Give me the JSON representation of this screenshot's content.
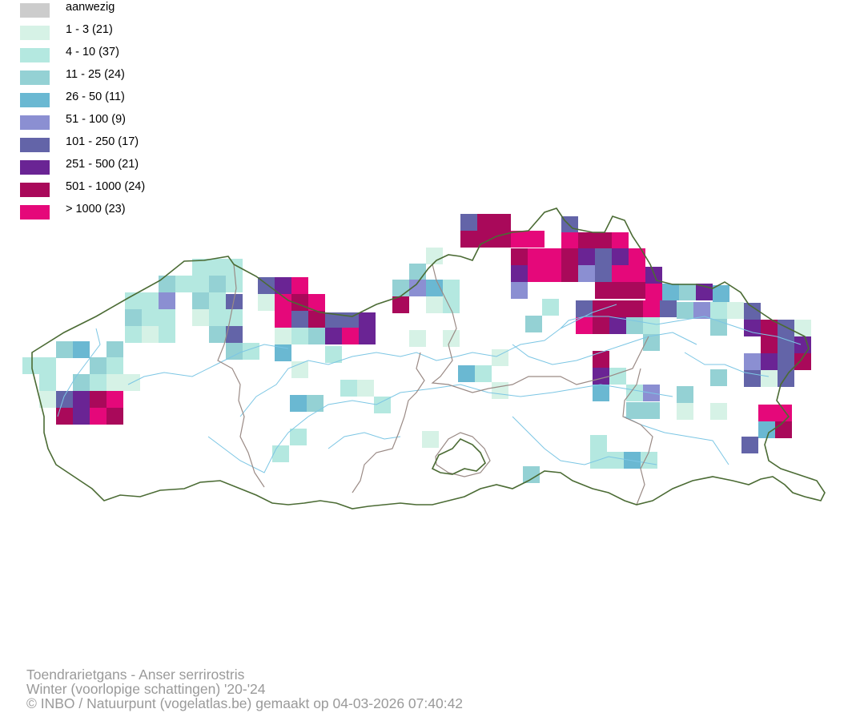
{
  "legend": [
    {
      "label": "aanwezig",
      "color": "#cccccc"
    },
    {
      "label": "1 - 3 (21)",
      "color": "#d6f2e6"
    },
    {
      "label": "4 - 10 (37)",
      "color": "#b4e8e0"
    },
    {
      "label": "11 - 25 (24)",
      "color": "#94d1d4"
    },
    {
      "label": "26 - 50 (11)",
      "color": "#6ab8d2"
    },
    {
      "label": "51 - 100 (9)",
      "color": "#8b8fd2"
    },
    {
      "label": "101 - 250 (17)",
      "color": "#6364a8"
    },
    {
      "label": "251 - 500 (21)",
      "color": "#6a2494"
    },
    {
      "label": "501 - 1000 (24)",
      "color": "#a9095a"
    },
    {
      "label": "> 1000 (23)",
      "color": "#e5087a"
    }
  ],
  "caption": {
    "species": "Toendrarietgans - Anser serrirostris",
    "period": "Winter (voorlopige schattingen) '20-'24",
    "credit": "© INBO / Natuurpunt (vogelatlas.be) gemaakt op 04-03-2026 07:40:42"
  },
  "map_colors": {
    "border": "#4b6b34",
    "province_border": "#9a8a85",
    "river": "#7cc6e4"
  }
}
